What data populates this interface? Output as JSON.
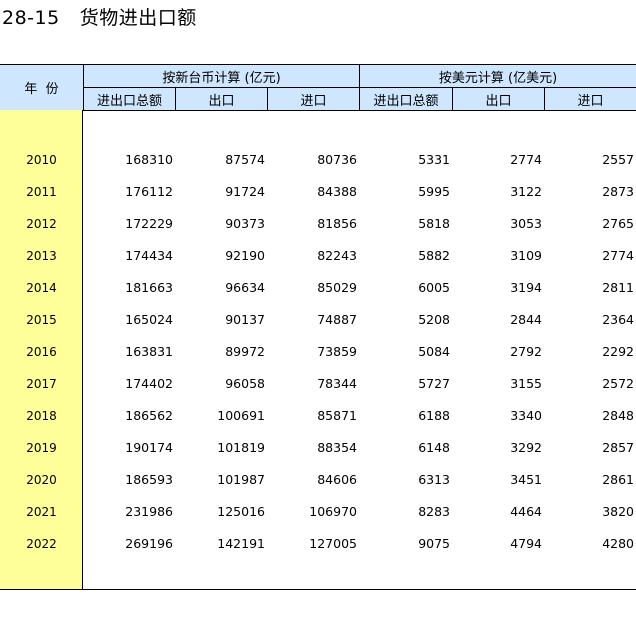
{
  "title": {
    "code": "28-15",
    "text": "货物进出口额"
  },
  "header": {
    "year_label": "年  份",
    "group_twd": "按新台币计算 (亿元)",
    "group_usd": "按美元计算 (亿美元)",
    "sub_columns": [
      "进出口总额",
      "出口",
      "进口",
      "进出口总额",
      "出口",
      "进口"
    ]
  },
  "rows": [
    {
      "year": "2010",
      "values": [
        "168310",
        "87574",
        "80736",
        "5331",
        "2774",
        "2557"
      ]
    },
    {
      "year": "2011",
      "values": [
        "176112",
        "91724",
        "84388",
        "5995",
        "3122",
        "2873"
      ]
    },
    {
      "year": "2012",
      "values": [
        "172229",
        "90373",
        "81856",
        "5818",
        "3053",
        "2765"
      ]
    },
    {
      "year": "2013",
      "values": [
        "174434",
        "92190",
        "82243",
        "5882",
        "3109",
        "2774"
      ]
    },
    {
      "year": "2014",
      "values": [
        "181663",
        "96634",
        "85029",
        "6005",
        "3194",
        "2811"
      ]
    },
    {
      "year": "2015",
      "values": [
        "165024",
        "90137",
        "74887",
        "5208",
        "2844",
        "2364"
      ]
    },
    {
      "year": "2016",
      "values": [
        "163831",
        "89972",
        "73859",
        "5084",
        "2792",
        "2292"
      ]
    },
    {
      "year": "2017",
      "values": [
        "174402",
        "96058",
        "78344",
        "5727",
        "3155",
        "2572"
      ]
    },
    {
      "year": "2018",
      "values": [
        "186562",
        "100691",
        "85871",
        "6188",
        "3340",
        "2848"
      ]
    },
    {
      "year": "2019",
      "values": [
        "190174",
        "101819",
        "88354",
        "6148",
        "3292",
        "2857"
      ]
    },
    {
      "year": "2020",
      "values": [
        "186593",
        "101987",
        "84606",
        "6313",
        "3451",
        "2861"
      ]
    },
    {
      "year": "2021",
      "values": [
        "231986",
        "125016",
        "106970",
        "8283",
        "4464",
        "3820"
      ]
    },
    {
      "year": "2022",
      "values": [
        "269196",
        "142191",
        "127005",
        "9075",
        "4794",
        "4280"
      ]
    }
  ]
}
